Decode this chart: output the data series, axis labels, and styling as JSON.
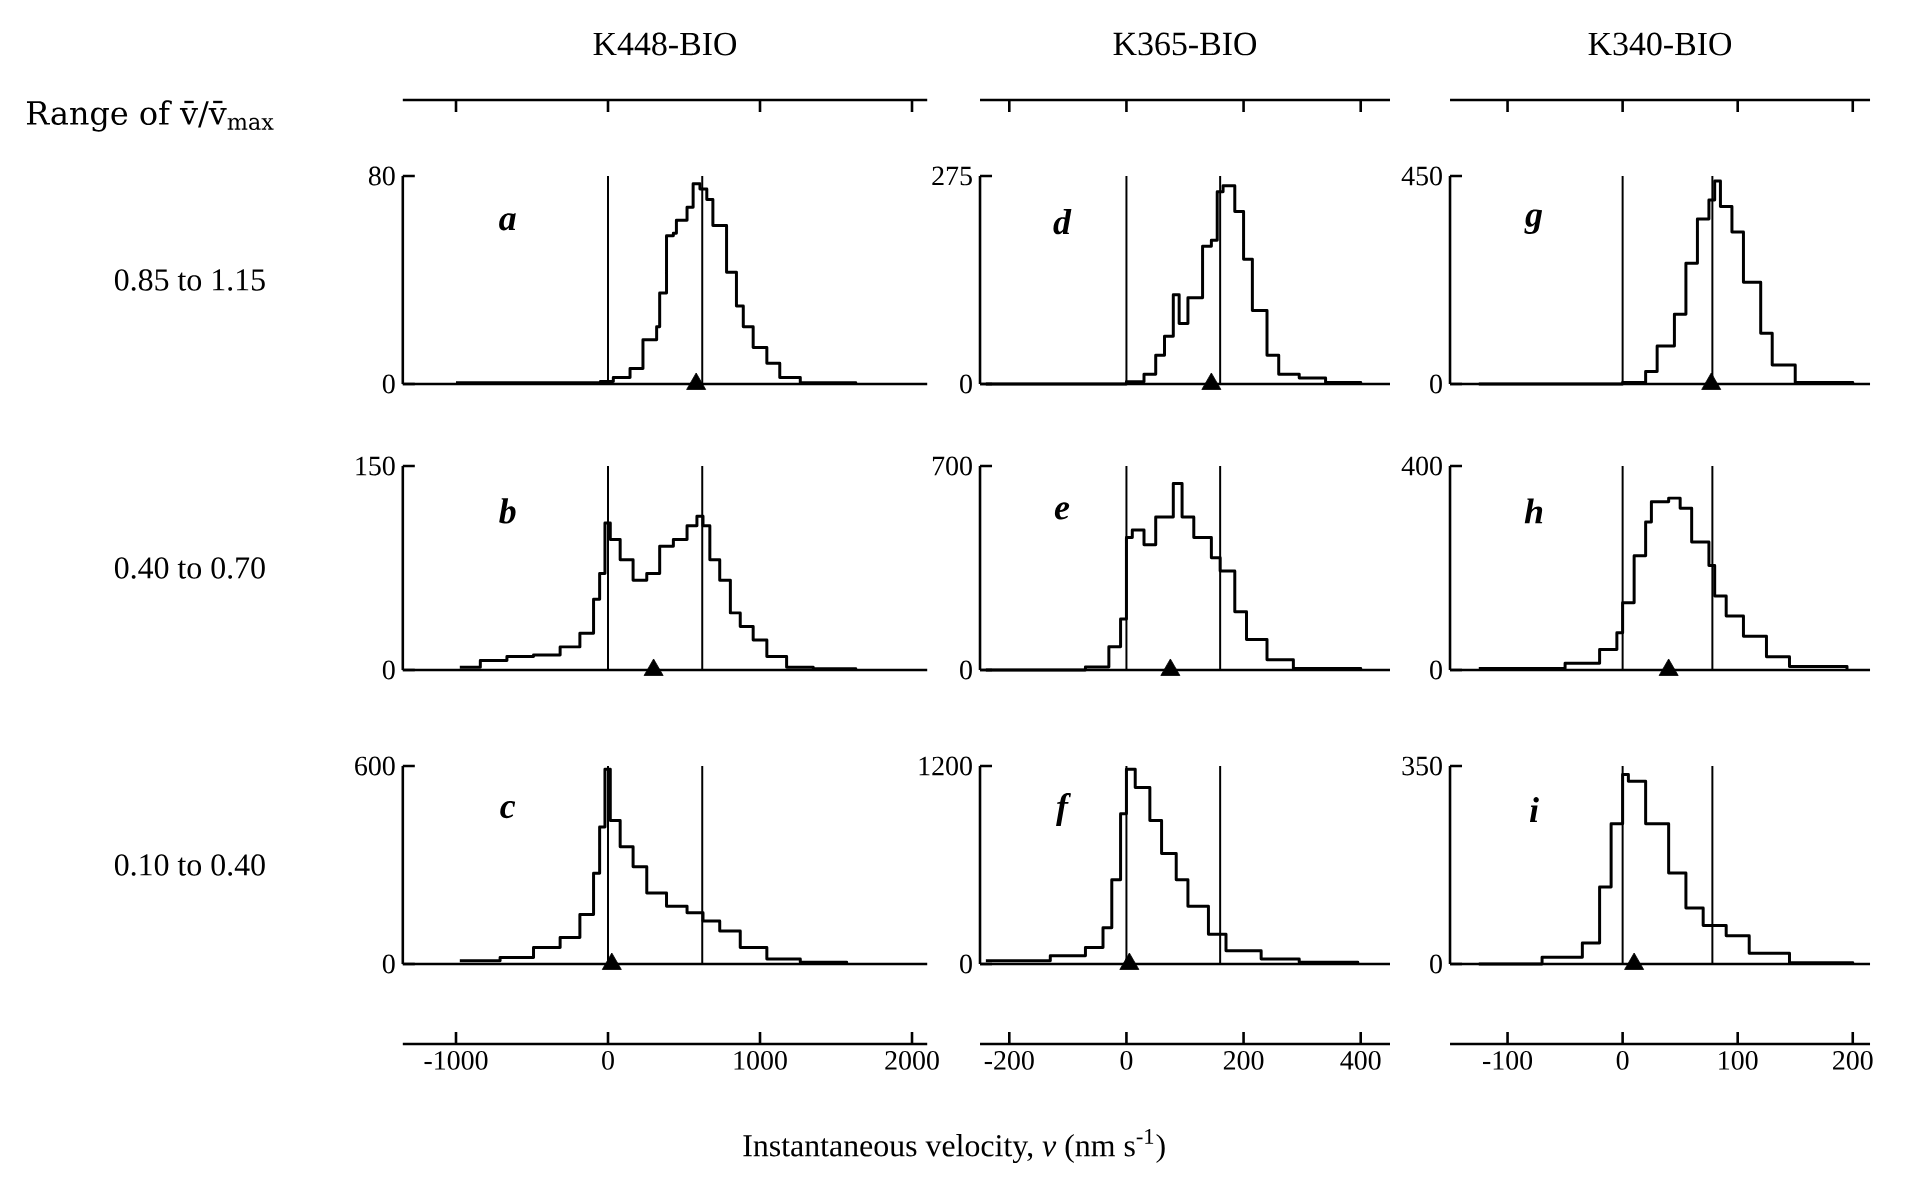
{
  "chart_data": [
    {
      "type": "step",
      "title": "K448-BIO",
      "annotations": [
        "a",
        "Range of v̄/v̄$_{max}$"
      ],
      "xlim": [
        -1350,
        2100
      ],
      "tick_labels": "y",
      "ylabel": "0.85 to 1.15",
      "ylim": [
        0,
        80
      ],
      "yticks": [
        0,
        80
      ],
      "ref_lines": [
        {
          "axis": "x",
          "value": 0
        },
        {
          "axis": "x",
          "value": 620
        }
      ],
      "series": [
        {
          "color": "#000000",
          "x": [
            -1000,
            -50,
            35,
            145,
            230,
            320,
            340,
            385,
            430,
            450,
            520,
            560,
            605,
            650,
            690,
            780,
            845,
            890,
            955,
            1045,
            1130,
            1265,
            1630
          ],
          "values": [
            0.5,
            1,
            2.5,
            6,
            17,
            22,
            35,
            57,
            58,
            63,
            68,
            77,
            75,
            71,
            61,
            43,
            30,
            22,
            14,
            8,
            2.5,
            0.5,
            0
          ]
        },
        {
          "type": "scatter",
          "color": "#000000",
          "marker": "triangle",
          "x": [
            580
          ],
          "values": [
            0
          ]
        }
      ]
    },
    {
      "type": "step",
      "title": "K365-BIO",
      "annotations": [
        "d"
      ],
      "xlim": [
        -250,
        450
      ],
      "tick_labels": "y",
      "ylim": [
        0,
        275
      ],
      "yticks": [
        0,
        275
      ],
      "ref_lines": [
        {
          "axis": "x",
          "value": 0
        },
        {
          "axis": "x",
          "value": 160
        }
      ],
      "series": [
        {
          "color": "#000000",
          "x": [
            -240,
            0,
            30,
            50,
            65,
            80,
            90,
            105,
            130,
            145,
            155,
            165,
            185,
            200,
            215,
            240,
            260,
            295,
            340,
            400
          ],
          "values": [
            0,
            3,
            13,
            38,
            63,
            118,
            80,
            114,
            182,
            190,
            254,
            262,
            228,
            165,
            97,
            38,
            13,
            8,
            2,
            0
          ]
        },
        {
          "type": "scatter",
          "color": "#000000",
          "marker": "triangle",
          "x": [
            145
          ],
          "values": [
            0
          ]
        }
      ]
    },
    {
      "type": "step",
      "title": "K340-BIO",
      "annotations": [
        "g"
      ],
      "xlim": [
        -150,
        215
      ],
      "tick_labels": "y",
      "ylim": [
        0,
        450
      ],
      "yticks": [
        0,
        450
      ],
      "ref_lines": [
        {
          "axis": "x",
          "value": 0
        },
        {
          "axis": "x",
          "value": 78
        }
      ],
      "series": [
        {
          "color": "#000000",
          "x": [
            -125,
            0,
            20,
            30,
            45,
            55,
            65,
            75,
            80,
            85,
            95,
            105,
            120,
            130,
            150,
            200
          ],
          "values": [
            0,
            3,
            27,
            82,
            151,
            261,
            357,
            398,
            439,
            384,
            329,
            220,
            110,
            41,
            3,
            0
          ]
        },
        {
          "type": "scatter",
          "color": "#000000",
          "marker": "triangle",
          "x": [
            77
          ],
          "values": [
            0
          ]
        }
      ]
    },
    {
      "type": "step",
      "annotations": [
        "b"
      ],
      "xlim": [
        -1350,
        2100
      ],
      "tick_labels": "y",
      "ylabel": "0.40 to 0.70",
      "ylim": [
        0,
        150
      ],
      "yticks": [
        0,
        150
      ],
      "ref_lines": [
        {
          "axis": "x",
          "value": 0
        },
        {
          "axis": "x",
          "value": 620
        }
      ],
      "series": [
        {
          "color": "#000000",
          "x": [
            -975,
            -840,
            -665,
            -490,
            -315,
            -185,
            -95,
            -55,
            -20,
            15,
            80,
            165,
            255,
            340,
            430,
            520,
            585,
            625,
            670,
            735,
            805,
            870,
            955,
            1045,
            1175,
            1350,
            1630
          ],
          "values": [
            2,
            7,
            10,
            11,
            17,
            27,
            52,
            71,
            108,
            96,
            81,
            66,
            71,
            91,
            96,
            106,
            113,
            106,
            81,
            66,
            42,
            32,
            22,
            10,
            2,
            1,
            0
          ]
        },
        {
          "type": "scatter",
          "color": "#000000",
          "marker": "triangle",
          "x": [
            300
          ],
          "values": [
            0
          ]
        }
      ]
    },
    {
      "type": "step",
      "annotations": [
        "e"
      ],
      "xlim": [
        -250,
        450
      ],
      "tick_labels": "y",
      "ylim": [
        0,
        700
      ],
      "yticks": [
        0,
        700
      ],
      "ref_lines": [
        {
          "axis": "x",
          "value": 0
        },
        {
          "axis": "x",
          "value": 160
        }
      ],
      "series": [
        {
          "color": "#000000",
          "x": [
            -240,
            -70,
            -30,
            -10,
            0,
            10,
            30,
            50,
            80,
            95,
            115,
            145,
            160,
            185,
            205,
            240,
            285,
            400
          ],
          "values": [
            0,
            10,
            80,
            175,
            455,
            480,
            430,
            525,
            640,
            525,
            455,
            385,
            340,
            200,
            105,
            35,
            5,
            0
          ]
        },
        {
          "type": "scatter",
          "color": "#000000",
          "marker": "triangle",
          "x": [
            75
          ],
          "values": [
            0
          ]
        }
      ]
    },
    {
      "type": "step",
      "annotations": [
        "h"
      ],
      "xlim": [
        -150,
        215
      ],
      "tick_labels": "y",
      "ylim": [
        0,
        400
      ],
      "yticks": [
        0,
        400
      ],
      "ref_lines": [
        {
          "axis": "x",
          "value": 0
        },
        {
          "axis": "x",
          "value": 78
        }
      ],
      "series": [
        {
          "color": "#000000",
          "x": [
            -125,
            -50,
            -20,
            -5,
            0,
            10,
            20,
            25,
            40,
            50,
            60,
            75,
            80,
            90,
            105,
            125,
            145,
            195
          ],
          "values": [
            3,
            13,
            40,
            73,
            132,
            224,
            290,
            330,
            337,
            317,
            251,
            205,
            145,
            106,
            66,
            26,
            7,
            0
          ]
        },
        {
          "type": "scatter",
          "color": "#000000",
          "marker": "triangle",
          "x": [
            40
          ],
          "values": [
            0
          ]
        }
      ]
    },
    {
      "type": "step",
      "annotations": [
        "c"
      ],
      "xlim": [
        -1350,
        2100
      ],
      "xticks": [
        -1000,
        0,
        1000,
        2000
      ],
      "ylabel": "0.10 to 0.40",
      "ylim": [
        0,
        600
      ],
      "yticks": [
        0,
        600
      ],
      "ref_lines": [
        {
          "axis": "x",
          "value": 0
        },
        {
          "axis": "x",
          "value": 620
        }
      ],
      "series": [
        {
          "color": "#000000",
          "x": [
            -975,
            -710,
            -490,
            -315,
            -185,
            -95,
            -55,
            -20,
            15,
            80,
            165,
            255,
            385,
            520,
            625,
            735,
            870,
            1045,
            1265,
            1570
          ],
          "values": [
            10,
            20,
            50,
            80,
            150,
            275,
            415,
            590,
            435,
            355,
            295,
            215,
            175,
            155,
            130,
            100,
            50,
            15,
            5,
            0
          ]
        },
        {
          "type": "scatter",
          "color": "#000000",
          "marker": "triangle",
          "x": [
            25
          ],
          "values": [
            0
          ]
        }
      ]
    },
    {
      "type": "step",
      "annotations": [
        "f"
      ],
      "xlabel": "Instantaneous velocity, *v* (nm s$^{-1}$)",
      "xlim": [
        -250,
        450
      ],
      "xticks": [
        -200,
        0,
        200,
        400
      ],
      "ylim": [
        0,
        1200
      ],
      "yticks": [
        0,
        1200
      ],
      "ref_lines": [
        {
          "axis": "x",
          "value": 0
        },
        {
          "axis": "x",
          "value": 160
        }
      ],
      "series": [
        {
          "color": "#000000",
          "x": [
            -240,
            -130,
            -70,
            -40,
            -25,
            -10,
            0,
            15,
            40,
            60,
            85,
            105,
            140,
            170,
            230,
            295,
            395
          ],
          "values": [
            20,
            50,
            100,
            220,
            510,
            910,
            1180,
            1070,
            870,
            670,
            510,
            350,
            180,
            80,
            30,
            10,
            0
          ]
        },
        {
          "type": "scatter",
          "color": "#000000",
          "marker": "triangle",
          "x": [
            5
          ],
          "values": [
            0
          ]
        }
      ]
    },
    {
      "type": "step",
      "annotations": [
        "i"
      ],
      "xlim": [
        -150,
        215
      ],
      "xticks": [
        -100,
        0,
        100,
        200
      ],
      "ylim": [
        0,
        350
      ],
      "yticks": [
        0,
        350
      ],
      "ref_lines": [
        {
          "axis": "x",
          "value": 0
        },
        {
          "axis": "x",
          "value": 78
        }
      ],
      "series": [
        {
          "color": "#000000",
          "x": [
            -125,
            -70,
            -35,
            -20,
            -10,
            0,
            5,
            20,
            40,
            55,
            70,
            90,
            110,
            145,
            200
          ],
          "values": [
            0,
            12,
            37,
            136,
            248,
            335,
            323,
            248,
            161,
            99,
            68,
            50,
            19,
            2,
            0
          ]
        },
        {
          "type": "scatter",
          "color": "#000000",
          "marker": "triangle",
          "x": [
            10
          ],
          "values": [
            0
          ]
        }
      ]
    }
  ]
}
